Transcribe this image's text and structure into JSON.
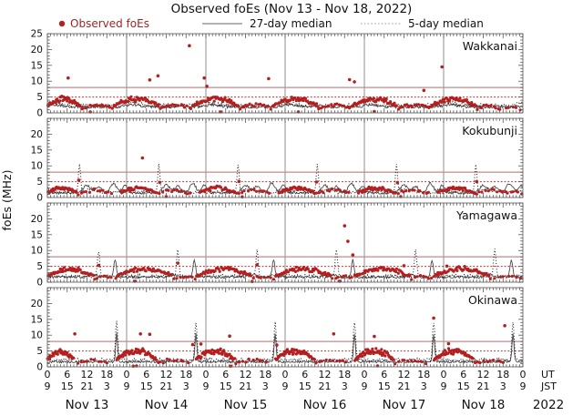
{
  "title": "Observed foEs (Nov 13 - Nov 18, 2022)",
  "legend": {
    "observed": "Observed foEs",
    "median27": "27-day median",
    "median5": "5-day median"
  },
  "ylabel": "foEs (MHz)",
  "colors": {
    "observed": "#b41f1f",
    "observed_label": "#a52424",
    "median27": "#4a4a4a",
    "median5": "#1e1e1e",
    "threshold5": "#bb2222",
    "threshold8": "#c58a8a",
    "dayline": "#8f8f8f",
    "border": "#777777",
    "tick": "#555555",
    "text": "#111111",
    "legend_line": "#888888"
  },
  "chart_data": {
    "type": "scatter",
    "x_domain_hours": [
      0,
      144
    ],
    "ylim": [
      0,
      25
    ],
    "grid": "vertical-day-lines",
    "legend_position": "top",
    "thresholds": [
      {
        "value": 5,
        "style": "dotted"
      },
      {
        "value": 8,
        "style": "solid"
      }
    ],
    "x_axis": {
      "major_tick_hours": 6,
      "minor_tick_hours": 1,
      "ut_label": "UT",
      "jst_label": "JST",
      "year_label": "2022",
      "dates": [
        "Nov 13",
        "Nov 14",
        "Nov 15",
        "Nov 16",
        "Nov 17",
        "Nov 18"
      ],
      "ut_ticks": [
        "0",
        "6",
        "12",
        "18",
        "0",
        "6",
        "12",
        "18",
        "0",
        "6",
        "12",
        "18",
        "0",
        "6",
        "12",
        "18",
        "0",
        "6",
        "12",
        "18",
        "0",
        "6",
        "12",
        "18",
        "0"
      ],
      "jst_ticks": [
        "9",
        "15",
        "21",
        "3",
        "9",
        "15",
        "21",
        "3",
        "9",
        "15",
        "21",
        "3",
        "9",
        "15",
        "21",
        "3",
        "9",
        "15",
        "21",
        "3",
        "9",
        "15",
        "21",
        "3",
        "9"
      ]
    },
    "panels": [
      {
        "station": "Wakkanai",
        "seed": 11,
        "yticks": [
          0,
          5,
          10,
          15,
          20,
          25
        ],
        "observed_bands": [
          [
            0,
            10,
            46,
            1.6,
            4.6
          ],
          [
            10,
            20,
            16,
            1.0,
            2.6
          ],
          [
            20,
            34,
            46,
            1.6,
            4.6
          ],
          [
            34,
            44,
            16,
            1.0,
            2.6
          ],
          [
            44,
            58,
            46,
            1.6,
            4.6
          ],
          [
            58,
            68,
            16,
            1.0,
            2.6
          ],
          [
            68,
            82,
            46,
            1.6,
            4.6
          ],
          [
            82,
            92,
            16,
            1.0,
            2.6
          ],
          [
            92,
            106,
            46,
            1.6,
            4.6
          ],
          [
            106,
            116,
            16,
            1.0,
            2.6
          ],
          [
            116,
            130,
            46,
            1.6,
            4.6
          ],
          [
            130,
            137,
            10,
            0.9,
            2.2
          ],
          [
            137,
            144,
            6,
            0.8,
            1.8
          ]
        ],
        "observed_outliers": [
          [
            6.3,
            11.0
          ],
          [
            31,
            10.4
          ],
          [
            33.5,
            11.7
          ],
          [
            43,
            21.2
          ],
          [
            47.5,
            11.0
          ],
          [
            48.3,
            8.4
          ],
          [
            67,
            10.8
          ],
          [
            91.5,
            10.5
          ],
          [
            93,
            9.8
          ],
          [
            114,
            7.1
          ],
          [
            119.5,
            14.5
          ],
          [
            13,
            0.3
          ],
          [
            52.5,
            0.3
          ],
          [
            76,
            0.3
          ],
          [
            99,
            0.4
          ]
        ],
        "median27": {
          "base": 1.9,
          "noise": 0.45,
          "daily_peaks": [
            {
              "h": 2,
              "amp": 0.7,
              "w": 2.0
            }
          ]
        },
        "median5": {
          "base": 2.3,
          "noise": 0.65,
          "daily_peaks": [
            {
              "h": 1,
              "amp": 1.0,
              "w": 2.0
            }
          ]
        }
      },
      {
        "station": "Kokubunji",
        "seed": 22,
        "yticks": [
          0,
          5,
          10,
          15,
          20
        ],
        "observed_bands": [
          [
            0,
            9,
            34,
            1.2,
            3.1
          ],
          [
            9,
            20,
            13,
            0.8,
            2.4
          ],
          [
            22,
            33,
            34,
            1.2,
            3.1
          ],
          [
            33,
            44,
            13,
            0.8,
            2.4
          ],
          [
            46,
            57,
            34,
            1.2,
            3.1
          ],
          [
            57,
            68,
            13,
            0.8,
            2.4
          ],
          [
            70,
            81,
            34,
            1.2,
            3.1
          ],
          [
            81,
            92,
            13,
            0.8,
            2.4
          ],
          [
            94,
            105,
            34,
            1.2,
            3.1
          ],
          [
            105,
            116,
            13,
            0.8,
            2.4
          ],
          [
            118,
            129,
            34,
            1.2,
            3.1
          ],
          [
            129,
            140,
            13,
            0.8,
            2.4
          ],
          [
            140,
            144,
            5,
            0.8,
            2.0
          ]
        ],
        "observed_outliers": [
          [
            28.8,
            12.5
          ],
          [
            9.5,
            5.5
          ],
          [
            34,
            4.8
          ],
          [
            58,
            5.1
          ],
          [
            81.5,
            4.9
          ],
          [
            106,
            4.7
          ],
          [
            130,
            5.0
          ],
          [
            36,
            0.3
          ],
          [
            59,
            0.2
          ],
          [
            107,
            0.3
          ]
        ],
        "median27": {
          "base": 1.5,
          "noise": 0.4,
          "daily_peaks": [
            {
              "h": 12,
              "amp": 2.4,
              "w": 1.1
            },
            {
              "h": 15.5,
              "amp": 2.0,
              "w": 0.9
            },
            {
              "h": 20,
              "amp": 3.0,
              "w": 0.9
            },
            {
              "h": 23.5,
              "amp": 2.3,
              "w": 0.8
            }
          ]
        },
        "median5": {
          "base": 1.7,
          "noise": 0.5,
          "daily_peaks": [
            {
              "h": 9.75,
              "amp": 8.6,
              "w": 0.32
            },
            {
              "h": 13,
              "amp": 1.2,
              "w": 1.0
            }
          ]
        }
      },
      {
        "station": "Yamagawa",
        "seed": 33,
        "yticks": [
          0,
          5,
          10,
          15,
          20
        ],
        "observed_bands": [
          [
            0,
            14,
            48,
            1.4,
            4.3
          ],
          [
            14,
            21,
            8,
            0.8,
            1.8
          ],
          [
            21,
            38,
            48,
            1.4,
            4.3
          ],
          [
            38,
            45,
            8,
            0.8,
            1.8
          ],
          [
            45,
            62,
            48,
            1.4,
            4.3
          ],
          [
            62,
            69,
            8,
            0.8,
            1.8
          ],
          [
            69,
            86,
            48,
            1.4,
            4.3
          ],
          [
            86,
            93,
            8,
            0.8,
            1.8
          ],
          [
            93,
            110,
            48,
            1.4,
            4.3
          ],
          [
            110,
            117,
            8,
            0.8,
            1.8
          ],
          [
            117,
            134,
            48,
            1.4,
            4.3
          ],
          [
            134,
            144,
            8,
            0.8,
            1.8
          ]
        ],
        "observed_outliers": [
          [
            15.5,
            5.3
          ],
          [
            39.5,
            6.0
          ],
          [
            63.5,
            5.5
          ],
          [
            90,
            17.8
          ],
          [
            91,
            12.9
          ],
          [
            92.5,
            8.6
          ],
          [
            108,
            5.2
          ],
          [
            121,
            5.1
          ],
          [
            26.5,
            0.3
          ],
          [
            62,
            0.2
          ],
          [
            88.5,
            0.3
          ]
        ],
        "median27": {
          "base": 1.6,
          "noise": 0.4,
          "daily_peaks": [
            {
              "h": 20.5,
              "amp": 5.4,
              "w": 0.4
            },
            {
              "h": 14,
              "amp": 0.8,
              "w": 1.2
            }
          ]
        },
        "median5": {
          "base": 1.9,
          "noise": 0.55,
          "daily_peaks": [
            {
              "h": 15.5,
              "amp": 8.2,
              "w": 0.35
            }
          ]
        }
      },
      {
        "station": "Okinawa",
        "seed": 44,
        "yticks": [
          0,
          5,
          10,
          15,
          20
        ],
        "observed_bands": [
          [
            0,
            8,
            40,
            1.8,
            5.0
          ],
          [
            9,
            19,
            10,
            0.8,
            2.2
          ],
          [
            21,
            33,
            52,
            1.6,
            5.2
          ],
          [
            33,
            43,
            10,
            0.8,
            2.2
          ],
          [
            45,
            57,
            52,
            1.6,
            5.2
          ],
          [
            57,
            67,
            10,
            0.8,
            2.2
          ],
          [
            69,
            81,
            52,
            1.6,
            5.2
          ],
          [
            81,
            91,
            10,
            0.8,
            2.2
          ],
          [
            93,
            105,
            52,
            1.6,
            5.2
          ],
          [
            105,
            115,
            10,
            0.8,
            2.2
          ],
          [
            117,
            129,
            52,
            1.6,
            5.2
          ],
          [
            129,
            139,
            10,
            0.8,
            2.2
          ]
        ],
        "observed_outliers": [
          [
            8.3,
            10.4
          ],
          [
            28.2,
            10.4
          ],
          [
            31,
            10.3
          ],
          [
            44,
            7.0
          ],
          [
            46.5,
            7.2
          ],
          [
            55.2,
            9.7
          ],
          [
            69.5,
            6.9
          ],
          [
            86.7,
            10.4
          ],
          [
            99,
            9.6
          ],
          [
            117,
            15.4
          ],
          [
            121.5,
            7.3
          ],
          [
            138.5,
            13.0
          ],
          [
            26,
            0.2
          ],
          [
            27,
            0.3
          ],
          [
            55.5,
            0.2
          ],
          [
            100,
            0.3
          ]
        ],
        "median27": {
          "base": 1.6,
          "noise": 0.35,
          "daily_peaks": [
            {
              "h": 21,
              "amp": 8.9,
              "w": 0.3
            }
          ]
        },
        "median5": {
          "base": 2.1,
          "noise": 0.6,
          "daily_peaks": [
            {
              "h": 21,
              "amp": 12.3,
              "w": 0.35
            }
          ]
        }
      }
    ]
  }
}
